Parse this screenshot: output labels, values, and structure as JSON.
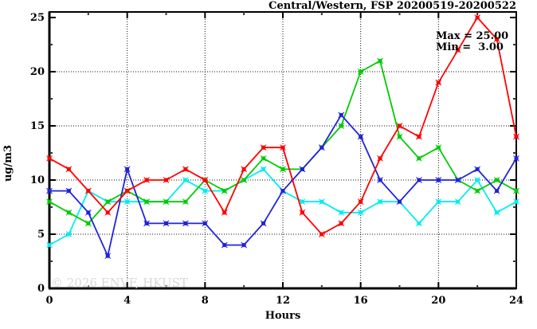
{
  "header": {
    "title": "Central/Western, FSP 20200519-20200522"
  },
  "stats": {
    "max_label": "Max = 25.00",
    "min_label": "Min =  3.00"
  },
  "watermark": "© 2026 ENVF, HKUST",
  "colors": {
    "red_series": "#ff0000",
    "green_series": "#00cc00",
    "blue_series": "#2222dd",
    "cyan_series": "#00eeee",
    "frame": "#000000",
    "grid": "#111111",
    "watermark": "#d7d7d7"
  },
  "chart_data": {
    "type": "line",
    "title": "Central/Western, FSP 20200519-20200522",
    "xlabel": "Hours",
    "ylabel": "ug/m3",
    "xlim": [
      0,
      24
    ],
    "ylim": [
      0,
      25
    ],
    "x_major_ticks": [
      0,
      4,
      8,
      12,
      16,
      20,
      24
    ],
    "x_minor_ticks": [
      2,
      6,
      10,
      14,
      18,
      22
    ],
    "y_major_ticks": [
      0,
      5,
      10,
      15,
      20,
      25
    ],
    "y_minor_ticks": [
      2.5,
      7.5,
      12.5,
      17.5,
      22.5
    ],
    "grid_x": [
      4,
      8,
      12,
      16,
      20
    ],
    "grid_y": [
      5,
      10,
      15,
      20
    ],
    "legend_position": "none",
    "annotations": {
      "max": "Max = 25.00",
      "min": "Min =  3.00"
    },
    "x": [
      0,
      1,
      2,
      3,
      4,
      5,
      6,
      7,
      8,
      9,
      10,
      11,
      12,
      13,
      14,
      15,
      16,
      17,
      18,
      19,
      20,
      21,
      22,
      23,
      24
    ],
    "series": [
      {
        "name": "cyan",
        "color": "#00eeee",
        "values": [
          4,
          5,
          9,
          8,
          8,
          8,
          8,
          10,
          9,
          9,
          10,
          11,
          9,
          8,
          8,
          7,
          7,
          8,
          8,
          6,
          8,
          8,
          10,
          7,
          8
        ]
      },
      {
        "name": "green",
        "color": "#00cc00",
        "values": [
          8,
          7,
          6,
          8,
          9,
          8,
          8,
          8,
          10,
          9,
          10,
          12,
          11,
          11,
          13,
          15,
          20,
          21,
          14,
          12,
          13,
          10,
          9,
          10,
          9
        ]
      },
      {
        "name": "blue",
        "color": "#2222dd",
        "values": [
          9,
          9,
          7,
          3,
          11,
          6,
          6,
          6,
          6,
          4,
          4,
          6,
          9,
          11,
          13,
          16,
          14,
          10,
          8,
          10,
          10,
          10,
          11,
          9,
          12
        ]
      },
      {
        "name": "red",
        "color": "#ff0000",
        "values": [
          12,
          11,
          9,
          7,
          9,
          10,
          10,
          11,
          10,
          7,
          11,
          13,
          13,
          7,
          5,
          6,
          8,
          12,
          15,
          14,
          19,
          22,
          25,
          23,
          14
        ]
      }
    ]
  }
}
